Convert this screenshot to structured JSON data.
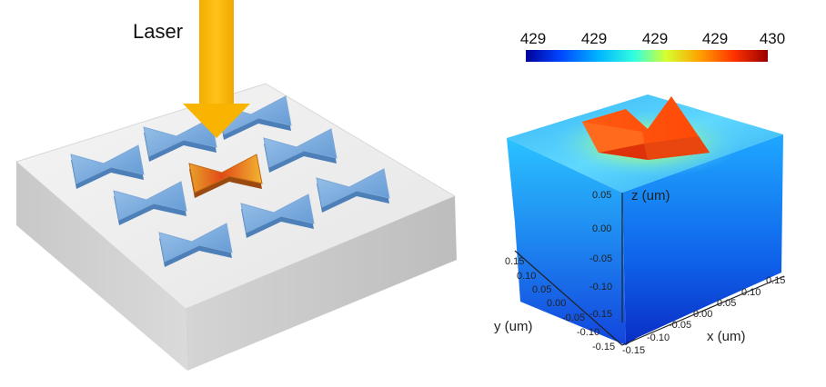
{
  "left_panel": {
    "laser_label": "Laser"
  },
  "colorbar": {
    "ticks": [
      "429",
      "429",
      "429",
      "429",
      "430"
    ],
    "colors": [
      "#00009a",
      "#0044ff",
      "#00b4ff",
      "#33ffe0",
      "#d6ff2e",
      "#ffa000",
      "#ff3200",
      "#9a0000"
    ]
  },
  "plot3d": {
    "z_title": "z (um)",
    "y_title": "y (um)",
    "x_title": "x (um)",
    "z_ticks": [
      "0.05",
      "0.00",
      "-0.05",
      "-0.10",
      "-0.15"
    ],
    "y_ticks": [
      "0.15",
      "0.10",
      "0.05",
      "0.00",
      "-0.05",
      "-0.10",
      "-0.15"
    ],
    "x_ticks": [
      "0.15",
      "0.10",
      "0.05",
      "0.00",
      "-0.05",
      "-0.10",
      "-0.15"
    ]
  }
}
